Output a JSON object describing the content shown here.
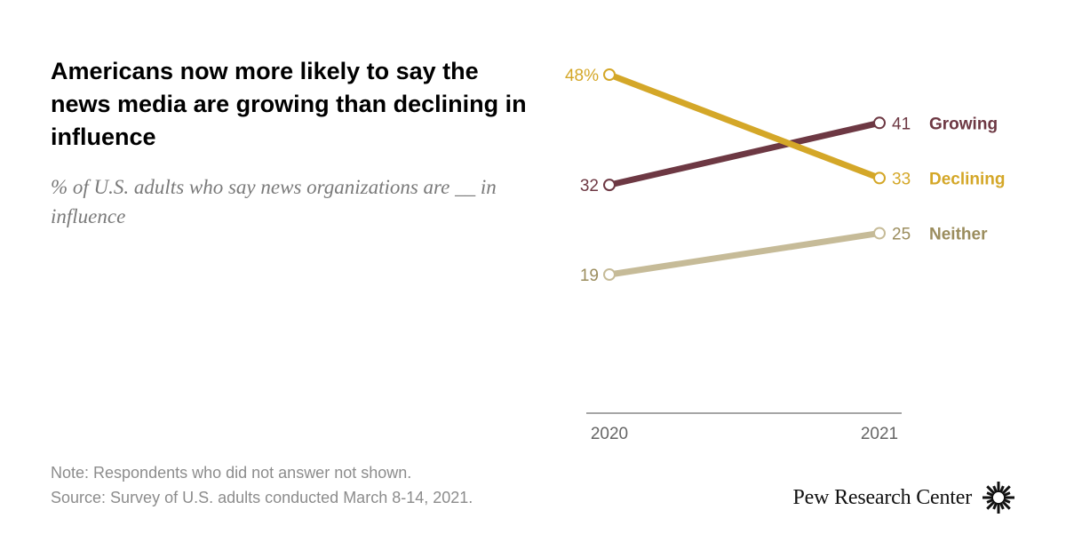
{
  "title": "Americans now more likely to say the news media are growing than declining in influence",
  "subtitle": "% of U.S. adults who say news organizations are __ in influence",
  "note": "Note: Respondents who did not answer not shown.",
  "source": "Survey of U.S. adults conducted March 8-14, 2021.",
  "source_prefix": "Source: ",
  "logo_text": "Pew Research Center",
  "logo_icon": "pew-sunburst-icon",
  "colors": {
    "Growing": "#6d3843",
    "Declining": "#d4a728",
    "Neither": "#c6bb98",
    "Neither_label": "#9b8d5e",
    "axis": "#888888"
  },
  "chart_data": {
    "type": "line",
    "x": [
      "2020",
      "2021"
    ],
    "series": [
      {
        "name": "Declining",
        "values": [
          48,
          33
        ],
        "value_labels": [
          "48%",
          "33"
        ]
      },
      {
        "name": "Growing",
        "values": [
          32,
          41
        ],
        "value_labels": [
          "32",
          "41"
        ]
      },
      {
        "name": "Neither",
        "values": [
          19,
          25
        ],
        "value_labels": [
          "19",
          "25"
        ]
      }
    ],
    "title": "Americans now more likely to say the news media are growing than declining in influence",
    "xlabel": "",
    "ylabel": "",
    "ylim": [
      0,
      50
    ],
    "grid": false,
    "legend": "direct labels at right end of lines"
  }
}
